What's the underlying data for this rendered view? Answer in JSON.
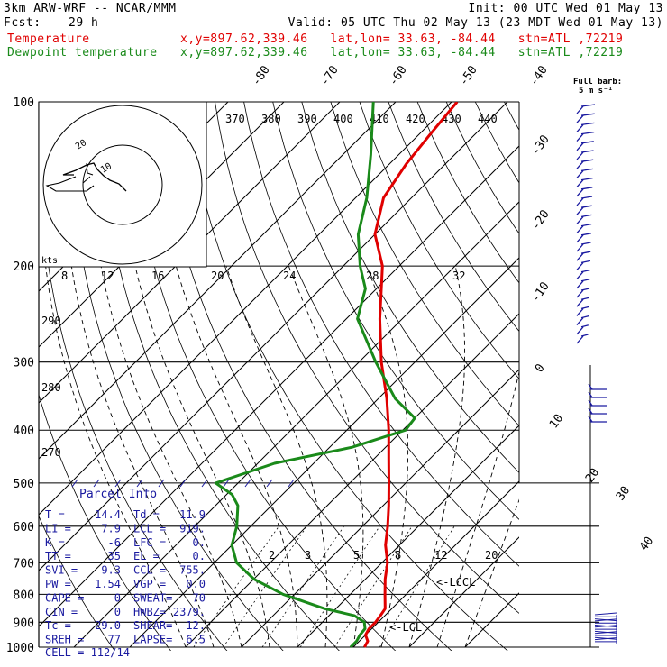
{
  "header": {
    "model": "3km ARW-WRF -- NCAR/MMM",
    "init": "Init: 00 UTC Wed 01 May 13",
    "fcst_label": "Fcst:",
    "fcst_value": "29 h",
    "valid": "Valid: 05 UTC Thu 02 May 13 (23 MDT Wed 01 May 13)",
    "temp_label": "Temperature",
    "temp_info": "x,y=897.62,339.46   lat,lon= 33.63, -84.44   stn=ATL ,72219",
    "dew_label": "Dewpoint temperature",
    "dew_info": "x,y=897.62,339.46   lat,lon= 33.63, -84.44   stn=ATL ,72219"
  },
  "colors": {
    "temperature": "#e00000",
    "dewpoint": "#1a8a1a",
    "wind": "#1a1aa0",
    "parcel_text": "#1a1aa0"
  },
  "chart_data": {
    "type": "line",
    "y_axis": {
      "scale": "log",
      "label_values": [
        100,
        200,
        300,
        400,
        500,
        600,
        700,
        800,
        900,
        1000
      ]
    },
    "pressure_lines": [
      100,
      200,
      300,
      400,
      500,
      600,
      700,
      800,
      900,
      1000
    ],
    "isotherm_labels": [
      -80,
      -70,
      -60,
      -50,
      -40,
      -30,
      -20,
      -10,
      0,
      10,
      20,
      30,
      40
    ],
    "theta_labels": [
      370,
      380,
      390,
      400,
      410,
      420,
      430,
      440
    ],
    "theta_left_labels": [
      290,
      280,
      270
    ],
    "mixing_ratio_labels": [
      "2",
      "3",
      "5",
      "8",
      "12",
      "20"
    ],
    "hodograph": {
      "unit_label": "kts",
      "ring_labels": [
        "10",
        "20"
      ],
      "speed_axis_labels": [
        "8",
        "12",
        "16",
        "20",
        "24",
        "28",
        "32"
      ]
    },
    "series": [
      {
        "name": "Temperature",
        "points": [
          [
            1000,
            22.0
          ],
          [
            975,
            21.5
          ],
          [
            950,
            20.0
          ],
          [
            925,
            19.5
          ],
          [
            900,
            19.5
          ],
          [
            875,
            19.2
          ],
          [
            850,
            18.8
          ],
          [
            800,
            16.2
          ],
          [
            750,
            13.5
          ],
          [
            700,
            11.0
          ],
          [
            650,
            7.5
          ],
          [
            600,
            4.5
          ],
          [
            550,
            1.0
          ],
          [
            500,
            -3.0
          ],
          [
            450,
            -7.5
          ],
          [
            400,
            -12.5
          ],
          [
            350,
            -18.5
          ],
          [
            300,
            -26.0
          ],
          [
            250,
            -34.0
          ],
          [
            200,
            -43.0
          ],
          [
            175,
            -50.0
          ],
          [
            150,
            -55.0
          ],
          [
            130,
            -57.0
          ],
          [
            115,
            -58.0
          ],
          [
            100,
            -59.0
          ]
        ]
      },
      {
        "name": "Dewpoint temperature",
        "points": [
          [
            1000,
            19.5
          ],
          [
            975,
            19.5
          ],
          [
            950,
            19.0
          ],
          [
            925,
            18.8
          ],
          [
            900,
            17.5
          ],
          [
            875,
            14.5
          ],
          [
            850,
            8.0
          ],
          [
            800,
            -2.0
          ],
          [
            750,
            -10.0
          ],
          [
            700,
            -16.0
          ],
          [
            650,
            -20.0
          ],
          [
            600,
            -22.5
          ],
          [
            550,
            -26.0
          ],
          [
            525,
            -29.0
          ],
          [
            500,
            -34.0
          ],
          [
            460,
            -27.0
          ],
          [
            430,
            -16.0
          ],
          [
            400,
            -9.5
          ],
          [
            380,
            -10.0
          ],
          [
            350,
            -17.0
          ],
          [
            300,
            -27.0
          ],
          [
            250,
            -38.0
          ],
          [
            220,
            -42.0
          ],
          [
            200,
            -47.0
          ],
          [
            175,
            -53.0
          ],
          [
            150,
            -58.0
          ],
          [
            125,
            -65.0
          ],
          [
            100,
            -74.0
          ]
        ]
      }
    ],
    "lcl_labels": [
      "<-LCL",
      "<-LCCL"
    ]
  },
  "wind_scale": {
    "title": "Full barb:",
    "unit": "5 m s⁻¹"
  },
  "parcel_info": {
    "title": "Parcel Info",
    "rows": [
      [
        "T  =",
        "14.4",
        "Td =",
        "11.9"
      ],
      [
        "LI =",
        "7.9",
        "LCL =",
        "919."
      ],
      [
        "K  =",
        "-6",
        "LFC =",
        "0."
      ],
      [
        "TT =",
        "35",
        "EL  =",
        "0."
      ],
      [
        "SVI =",
        "9.3",
        "CCL =",
        "755."
      ],
      [
        "PW =",
        "1.54",
        "VGP =",
        "0.0"
      ],
      [
        "CAPE =",
        "0",
        "SWEAT=",
        "70"
      ],
      [
        "CIN =",
        "0",
        "HWBZ=",
        "2379."
      ],
      [
        "Tc =",
        "29.0",
        "SHEAR=",
        "12."
      ],
      [
        "SREH =",
        "77",
        "LAPSE=",
        "6.5"
      ]
    ],
    "cell": "CELL = 112/14"
  }
}
